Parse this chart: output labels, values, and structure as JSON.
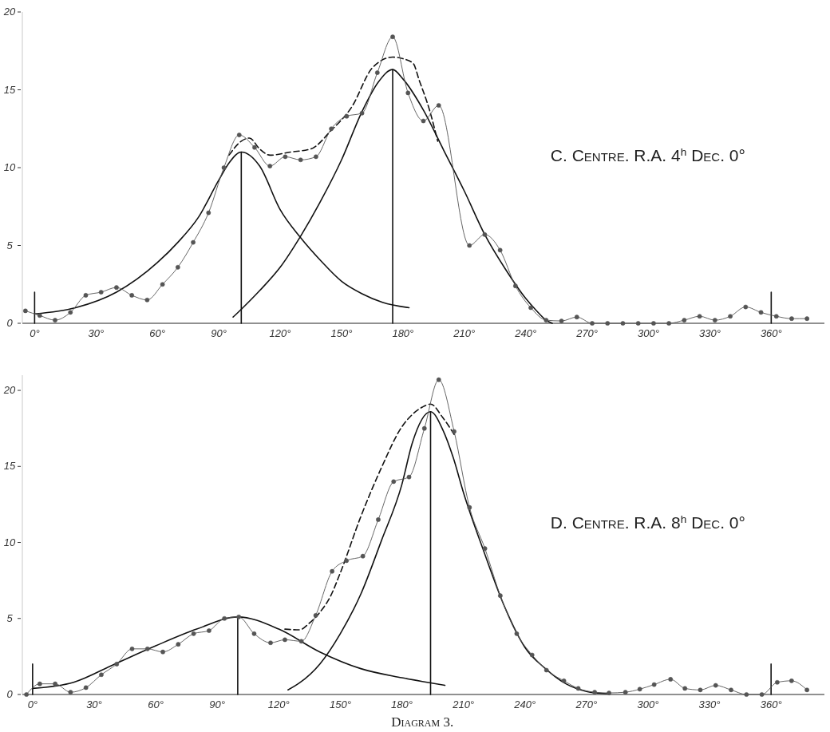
{
  "chart_data": [
    {
      "type": "line",
      "annotations": [
        "C. Centre. R.A. 4$^{h}$ Dec. 0°"
      ],
      "xlim": [
        -6,
        386
      ],
      "ylim": [
        0,
        20
      ],
      "xticks": [
        {
          "value": 0,
          "label": "0°"
        },
        {
          "value": 30,
          "label": "30°"
        },
        {
          "value": 60,
          "label": "60°"
        },
        {
          "value": 90,
          "label": "90°"
        },
        {
          "value": 120,
          "label": "120°"
        },
        {
          "value": 150,
          "label": "150°"
        },
        {
          "value": 180,
          "label": "180°"
        },
        {
          "value": 210,
          "label": "210°"
        },
        {
          "value": 240,
          "label": "240°"
        },
        {
          "value": 270,
          "label": "270°"
        },
        {
          "value": 300,
          "label": "300°"
        },
        {
          "value": 330,
          "label": "330°"
        },
        {
          "value": 360,
          "label": "360°"
        }
      ],
      "yticks": [
        0,
        5,
        10,
        15,
        20
      ],
      "grid": false,
      "series": [
        {
          "color": "#555555",
          "marker": "circle",
          "line_style": "solid",
          "x": [
            -4.5,
            2.5,
            10,
            17.5,
            25,
            32.5,
            40,
            47.5,
            55,
            62.5,
            70,
            77.5,
            85,
            92.5,
            100,
            107.5,
            115,
            122.5,
            130,
            137.5,
            145,
            152.5,
            160,
            167.5,
            175,
            182.5,
            190,
            197.5,
            212.5,
            220,
            227.5,
            235,
            242.5,
            250,
            257.5,
            265,
            272.5,
            280,
            287.5,
            295,
            302.5,
            310,
            317.5,
            325,
            332.5,
            340,
            347.5,
            355,
            362.5,
            370,
            377.5
          ],
          "values": [
            0.8,
            0.5,
            0.2,
            0.7,
            1.8,
            2.0,
            2.3,
            1.8,
            1.5,
            2.5,
            3.6,
            5.2,
            7.1,
            10.0,
            12.1,
            11.3,
            10.1,
            10.7,
            10.5,
            10.7,
            12.5,
            13.3,
            13.5,
            16.1,
            18.4,
            14.8,
            13.0,
            14.0,
            5.0,
            5.7,
            4.7,
            2.4,
            1.0,
            0.2,
            0.15,
            0.4,
            0,
            0,
            0,
            0,
            0,
            0,
            0.2,
            0.45,
            0.2,
            0.45,
            1.05,
            0.7,
            0.45,
            0.3,
            0.3
          ]
        },
        {
          "color": "#111111",
          "marker": "none",
          "line_style": "solid",
          "x": [
            0,
            20,
            40,
            60,
            70,
            80,
            90,
            95,
            101,
            110,
            120,
            130,
            140,
            150,
            160,
            170,
            183
          ],
          "values": [
            0.6,
            1.0,
            2.0,
            3.9,
            5.2,
            6.8,
            9.2,
            10.3,
            11.0,
            10.1,
            7.3,
            5.5,
            4.0,
            2.7,
            1.9,
            1.35,
            1.0
          ]
        },
        {
          "color": "#111111",
          "marker": "none",
          "line_style": "solid",
          "x": [
            97,
            101,
            110,
            120,
            130,
            140,
            150,
            160,
            168,
            175,
            180,
            190,
            200,
            210,
            220,
            230,
            240,
            245,
            250,
            253
          ],
          "values": [
            0.4,
            0.9,
            2.1,
            3.6,
            5.6,
            7.9,
            10.5,
            13.6,
            15.5,
            16.3,
            15.7,
            13.7,
            11.1,
            8.5,
            5.7,
            3.5,
            1.6,
            0.85,
            0.2,
            0
          ]
        },
        {
          "color": "#111111",
          "marker": "none",
          "line_style": "dashed",
          "x": [
            95,
            101,
            105,
            110,
            115,
            125,
            135,
            145,
            155,
            165,
            175,
            180,
            185,
            188,
            193,
            197
          ],
          "values": [
            10.8,
            11.7,
            11.9,
            11.2,
            10.8,
            11.0,
            11.2,
            12.4,
            13.9,
            16.4,
            17.1,
            17.0,
            16.7,
            15.6,
            13.7,
            11.7
          ]
        },
        {
          "color": "#111111",
          "marker": "none",
          "line_style": "solid",
          "x": [
            101,
            101
          ],
          "values": [
            0,
            11.0
          ]
        },
        {
          "color": "#111111",
          "marker": "none",
          "line_style": "solid",
          "x": [
            175,
            175
          ],
          "values": [
            0,
            16.3
          ]
        },
        {
          "color": "#111111",
          "marker": "none",
          "line_style": "solid",
          "x": [
            0,
            0
          ],
          "values": [
            0,
            2
          ]
        },
        {
          "color": "#111111",
          "marker": "none",
          "line_style": "solid",
          "x": [
            360,
            360
          ],
          "values": [
            0,
            2
          ]
        }
      ]
    },
    {
      "type": "line",
      "annotations": [
        "D. Centre. R.A. 8$^{h}$ Dec. 0°",
        "Diagram 3."
      ],
      "xlim": [
        -5,
        386
      ],
      "ylim": [
        0,
        21
      ],
      "xticks": [
        {
          "value": 0,
          "label": "0°"
        },
        {
          "value": 30,
          "label": "30°"
        },
        {
          "value": 60,
          "label": "60°"
        },
        {
          "value": 90,
          "label": "90°"
        },
        {
          "value": 120,
          "label": "120°"
        },
        {
          "value": 150,
          "label": "150°"
        },
        {
          "value": 180,
          "label": "180°"
        },
        {
          "value": 210,
          "label": "210°"
        },
        {
          "value": 240,
          "label": "240°"
        },
        {
          "value": 270,
          "label": "270°"
        },
        {
          "value": 300,
          "label": "300°"
        },
        {
          "value": 330,
          "label": "330°"
        },
        {
          "value": 360,
          "label": "360°"
        }
      ],
      "yticks": [
        0,
        5,
        10,
        15,
        20
      ],
      "grid": false,
      "series": [
        {
          "color": "#555555",
          "marker": "circle",
          "line_style": "solid",
          "x": [
            -3,
            3.5,
            11,
            18.5,
            26,
            33.5,
            41,
            48.5,
            56,
            63.5,
            71,
            78.5,
            86,
            93.5,
            100.5,
            108,
            116,
            123,
            131,
            138,
            146,
            153,
            161,
            168.5,
            176,
            183.5,
            191,
            198,
            205.5,
            213,
            220.5,
            228,
            236,
            243.5,
            250.5,
            259,
            266,
            274,
            281,
            289,
            296,
            303,
            311,
            318,
            325.5,
            333,
            340.5,
            348,
            355.5,
            363,
            370,
            377.5
          ],
          "values": [
            0,
            0.7,
            0.7,
            0.15,
            0.45,
            1.3,
            2.0,
            3.0,
            3.0,
            2.8,
            3.3,
            4.0,
            4.2,
            5.0,
            5.1,
            4.0,
            3.4,
            3.6,
            3.5,
            5.2,
            8.1,
            8.8,
            9.1,
            11.5,
            14.0,
            14.3,
            17.5,
            20.7,
            17.3,
            12.3,
            9.6,
            6.5,
            4.0,
            2.6,
            1.6,
            0.9,
            0.4,
            0.15,
            0.1,
            0.15,
            0.35,
            0.65,
            1.0,
            0.4,
            0.3,
            0.6,
            0.3,
            0,
            0,
            0.8,
            0.9,
            0.3
          ]
        },
        {
          "color": "#111111",
          "marker": "none",
          "line_style": "solid",
          "x": [
            0,
            20,
            40,
            60,
            80,
            100,
            120,
            140,
            160,
            180,
            190,
            201
          ],
          "values": [
            0.4,
            0.8,
            2.0,
            3.2,
            4.3,
            5.1,
            4.3,
            2.8,
            1.7,
            1.1,
            0.85,
            0.6
          ]
        },
        {
          "color": "#111111",
          "marker": "none",
          "line_style": "solid",
          "x": [
            124.5,
            130,
            140,
            150,
            160,
            170,
            180,
            185,
            194,
            200,
            205,
            210,
            220,
            230,
            240,
            250,
            260,
            270,
            280
          ],
          "values": [
            0.3,
            0.75,
            2.0,
            4.0,
            6.6,
            10.1,
            13.8,
            16.5,
            18.6,
            17.4,
            15.6,
            13.3,
            9.4,
            5.8,
            3.1,
            1.7,
            0.7,
            0.2,
            0.05
          ]
        },
        {
          "color": "#111111",
          "marker": "none",
          "line_style": "dashed",
          "x": [
            123,
            130,
            135,
            140,
            145,
            150,
            160,
            170,
            180,
            185,
            190,
            194,
            200,
            206
          ],
          "values": [
            4.3,
            4.25,
            4.7,
            5.4,
            6.4,
            8.0,
            11.7,
            14.9,
            17.6,
            18.4,
            18.9,
            19.1,
            18.2,
            17.0
          ]
        },
        {
          "color": "#111111",
          "marker": "none",
          "line_style": "solid",
          "x": [
            100,
            100
          ],
          "values": [
            0,
            5.1
          ]
        },
        {
          "color": "#111111",
          "marker": "none",
          "line_style": "solid",
          "x": [
            194,
            194
          ],
          "values": [
            0,
            18.6
          ]
        },
        {
          "color": "#111111",
          "marker": "none",
          "line_style": "solid",
          "x": [
            0,
            0
          ],
          "values": [
            0,
            2
          ]
        },
        {
          "color": "#111111",
          "marker": "none",
          "line_style": "solid",
          "x": [
            360,
            360
          ],
          "values": [
            0,
            2
          ]
        }
      ]
    }
  ]
}
